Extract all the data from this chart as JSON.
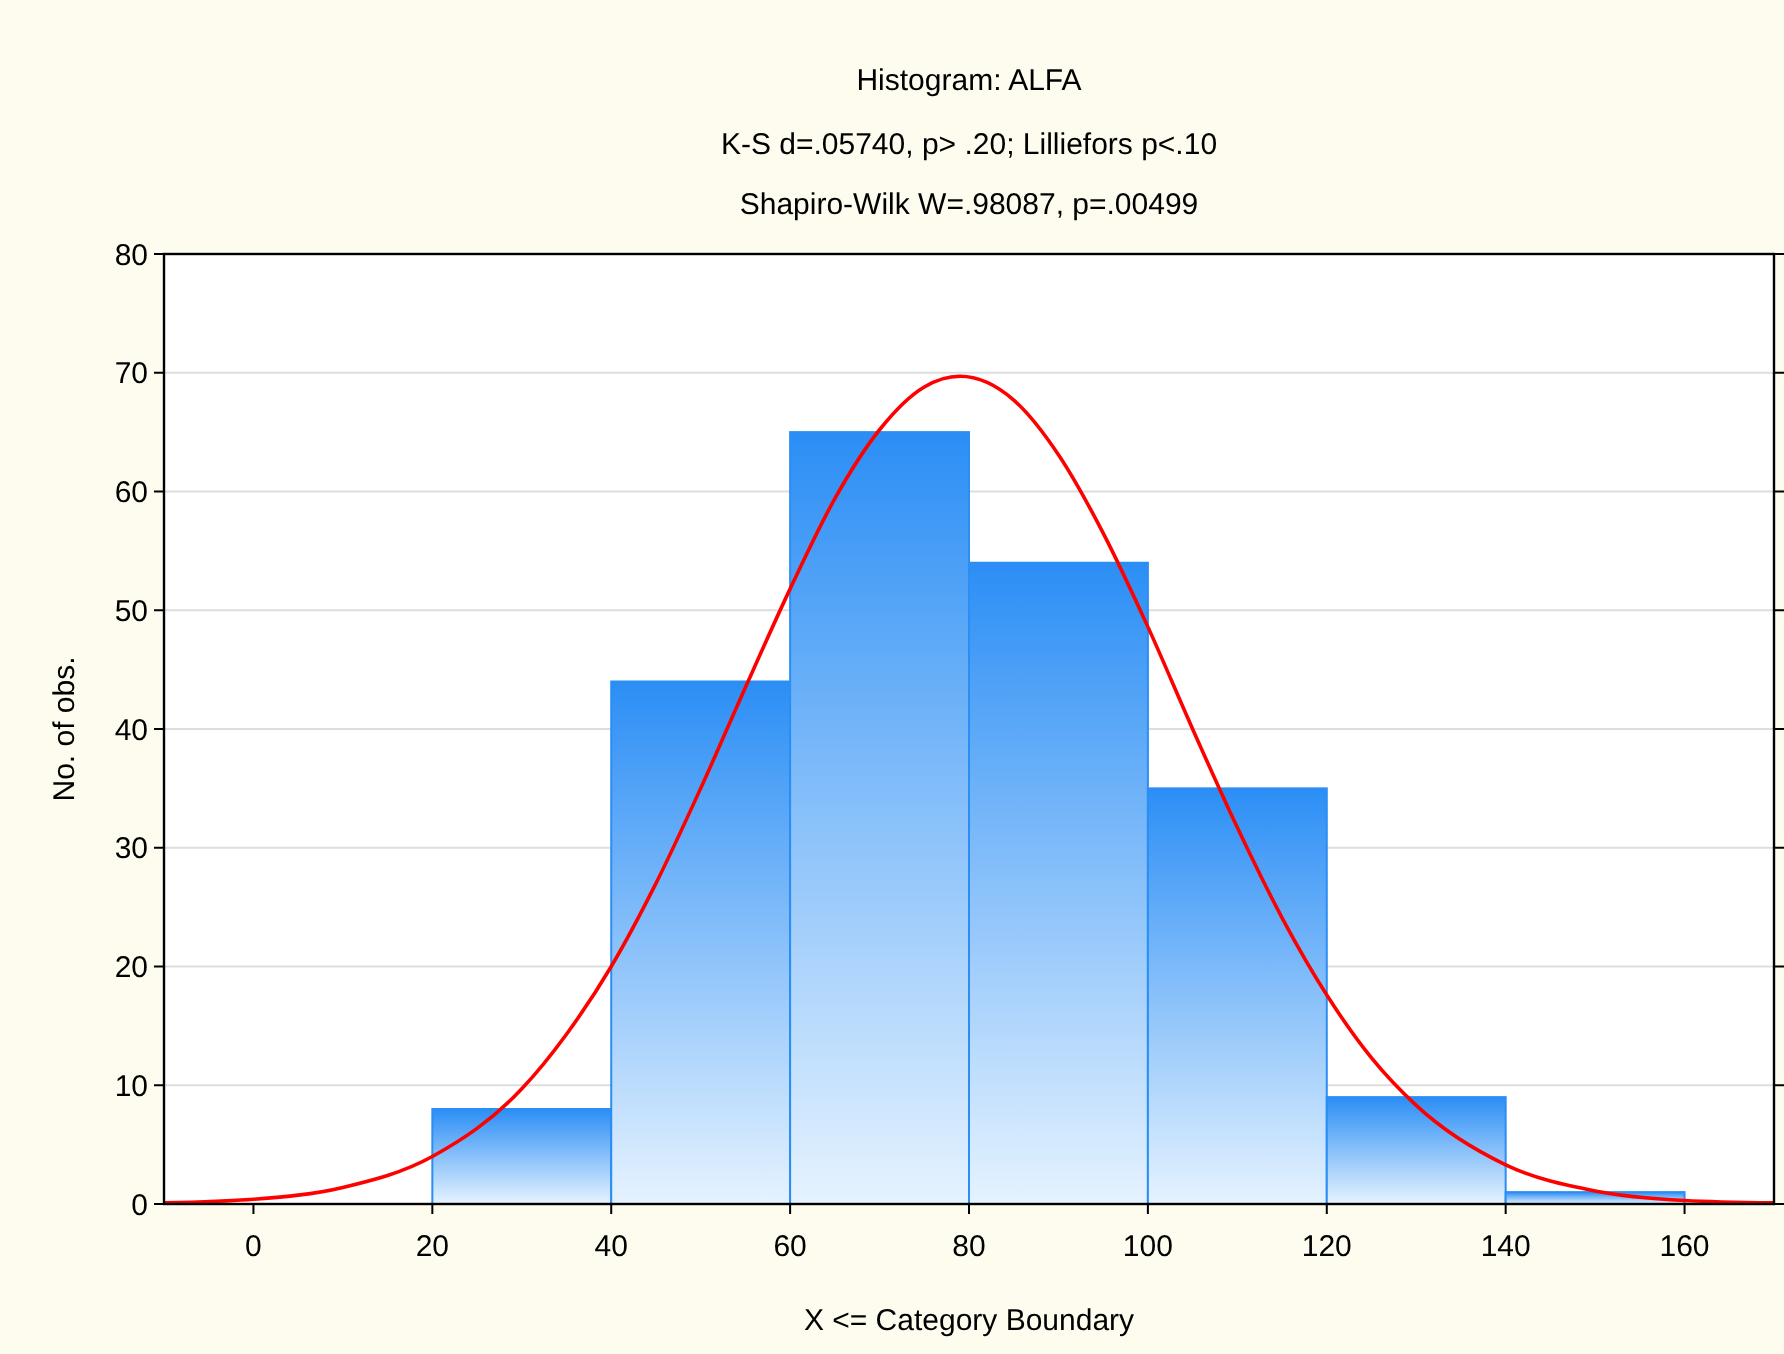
{
  "chart_data": {
    "type": "histogram",
    "title": "Histogram: ALFA",
    "subtitle": "K-S d=.05740, p> .20; Lilliefors p<.10\nShapiro-Wilk W=.98087, p=.00499",
    "xlabel": "X <= Category Boundary",
    "ylabel": "No. of obs.",
    "bins": [
      20,
      40,
      60,
      80,
      100,
      120,
      140,
      160
    ],
    "values": [
      8,
      44,
      65,
      54,
      35,
      9,
      1
    ],
    "color": "#2b8ef5",
    "series": [
      {
        "type": "line",
        "color": "#ff0000",
        "x": [
          -10,
          0,
          10,
          20,
          30,
          35,
          40,
          45,
          50,
          55,
          60,
          65,
          70,
          75,
          79,
          85,
          90,
          95,
          100,
          105,
          110,
          115,
          120,
          125,
          130,
          140,
          150,
          160,
          170
        ],
        "values": [
          0.1,
          0.4,
          1.4,
          4.0,
          9.7,
          14.3,
          20.0,
          27.0,
          35.0,
          43.5,
          51.8,
          59.4,
          65.2,
          68.8,
          69.7,
          67.7,
          63.1,
          56.5,
          48.6,
          40.0,
          31.7,
          24.1,
          17.6,
          12.3,
          8.3,
          3.3,
          1.1,
          0.3,
          0.1
        ]
      }
    ],
    "xlim": [
      -10,
      170
    ],
    "ylim": [
      0,
      80
    ],
    "xticks": [
      0,
      20,
      40,
      60,
      80,
      100,
      120,
      140,
      160
    ],
    "yticks": [
      0,
      10,
      20,
      30,
      40,
      50,
      60,
      70,
      80
    ],
    "grid": "y"
  }
}
